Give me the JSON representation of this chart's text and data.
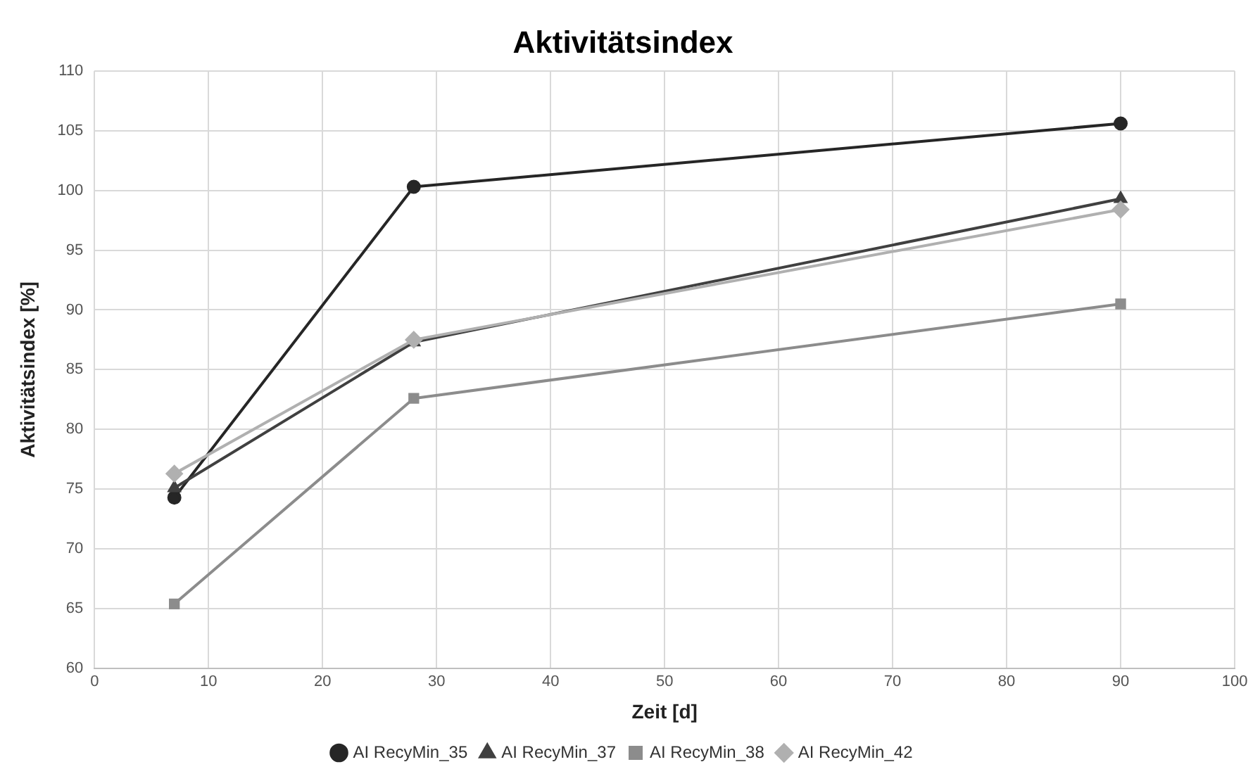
{
  "chart_data": {
    "type": "line",
    "title": "Aktivitätsindex",
    "xlabel": "Zeit [d]",
    "ylabel": "Aktivitätsindex [%]",
    "xlim": [
      0,
      100
    ],
    "xticks": [
      0,
      10,
      20,
      30,
      40,
      50,
      60,
      70,
      80,
      90,
      100
    ],
    "ylim": [
      60,
      110
    ],
    "yticks": [
      60,
      65,
      70,
      75,
      80,
      85,
      90,
      95,
      100,
      105,
      110
    ],
    "grid": true,
    "legend": "bottom",
    "line_style": "solid",
    "series": [
      {
        "name": "AI RecyMin_35",
        "color": "#262626",
        "marker": "circle",
        "x": [
          7,
          28,
          90
        ],
        "values": [
          74.3,
          100.3,
          105.6
        ]
      },
      {
        "name": "AI RecyMin_37",
        "color": "#404040",
        "marker": "triangle",
        "x": [
          7,
          28,
          90
        ],
        "values": [
          75.1,
          87.3,
          99.3
        ]
      },
      {
        "name": "AI RecyMin_38",
        "color": "#8c8c8c",
        "marker": "square",
        "x": [
          7,
          28,
          90
        ],
        "values": [
          65.4,
          82.6,
          90.5
        ]
      },
      {
        "name": "AI RecyMin_42",
        "color": "#b0b0b0",
        "marker": "diamond",
        "x": [
          7,
          28,
          90
        ],
        "values": [
          76.3,
          87.5,
          98.4
        ]
      }
    ]
  }
}
